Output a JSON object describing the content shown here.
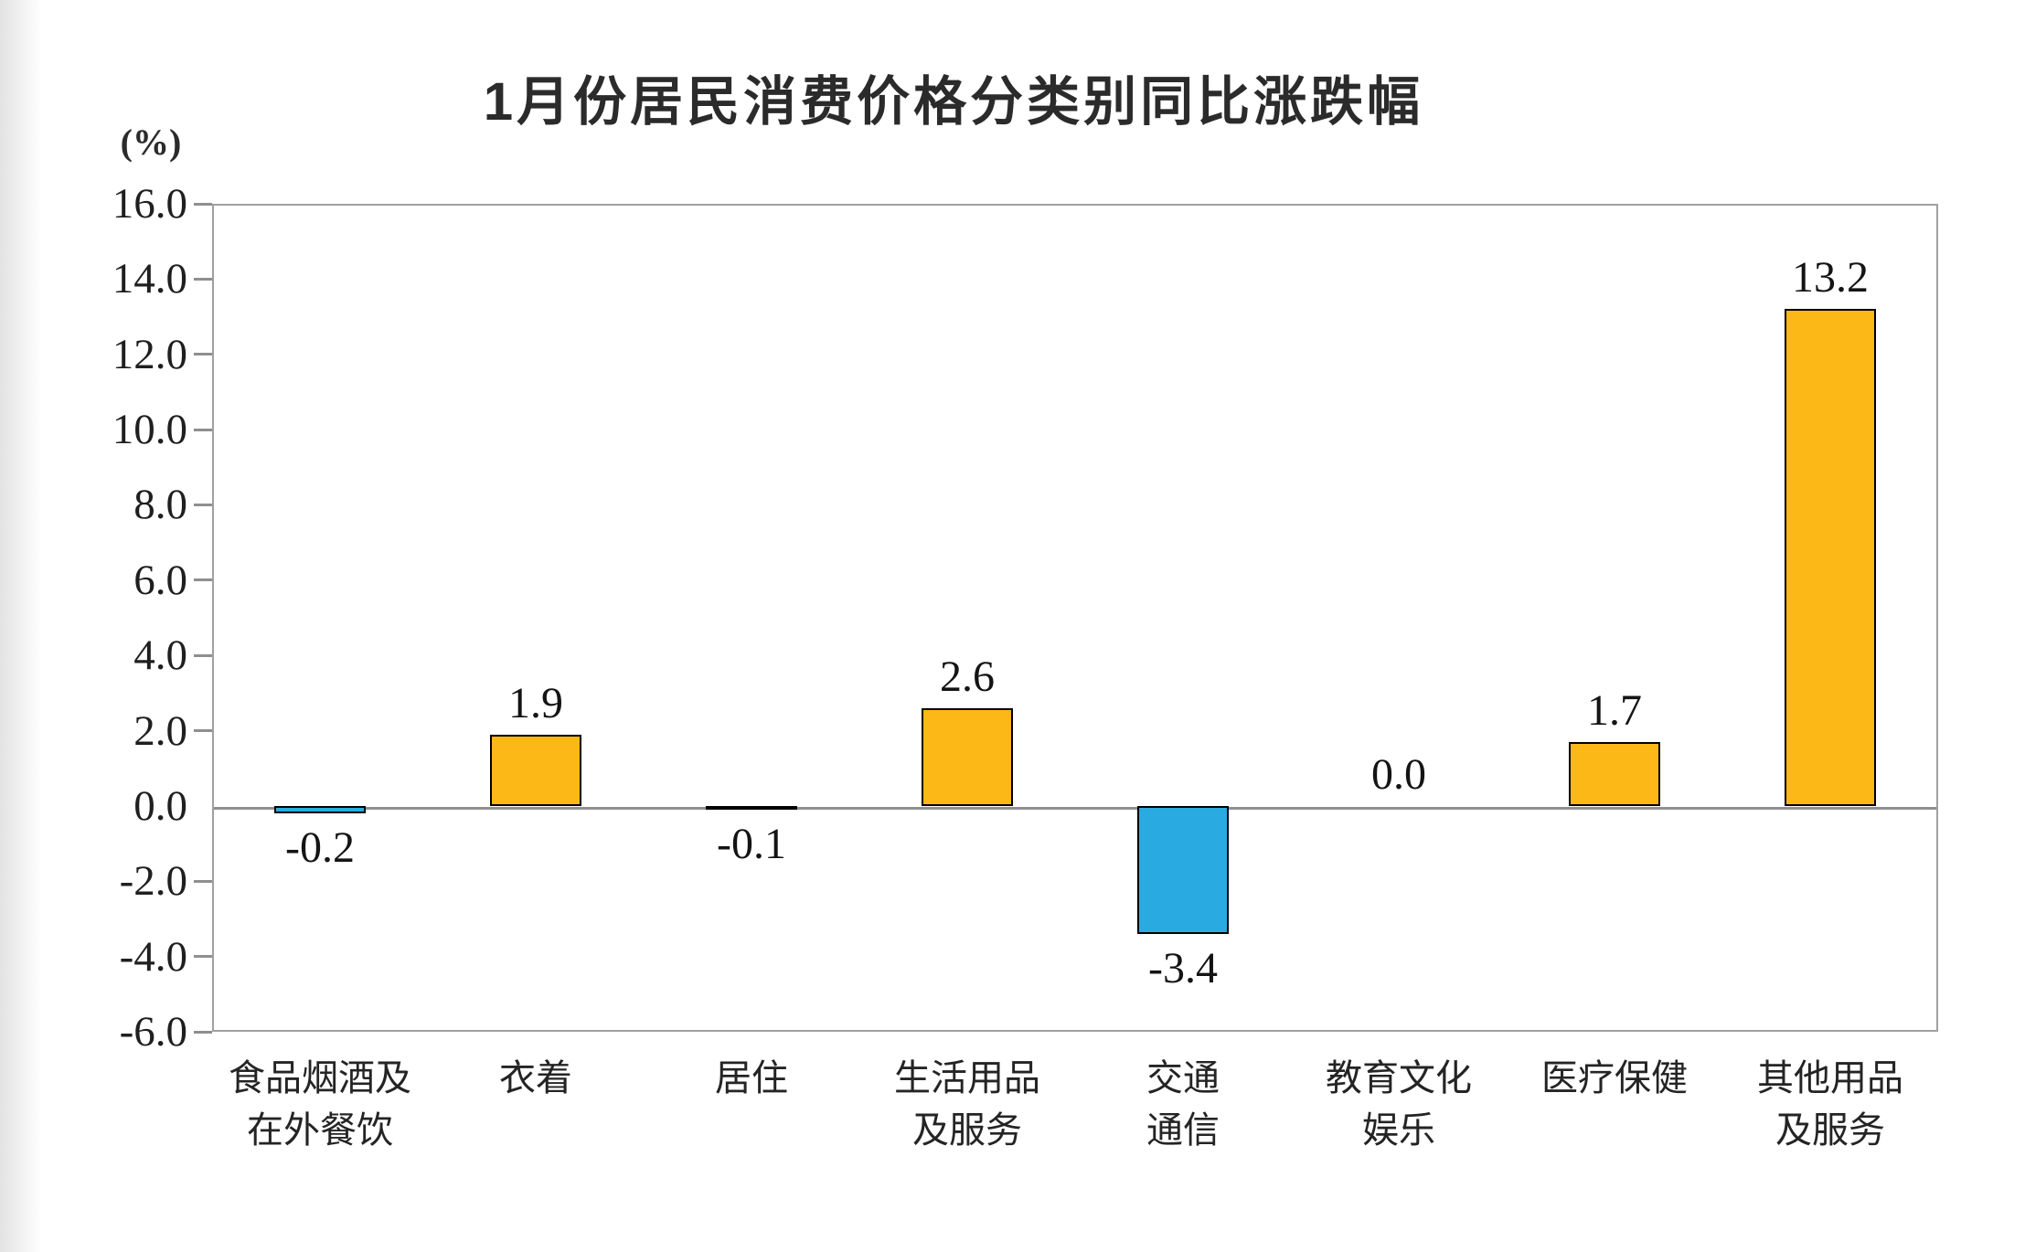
{
  "title": "1月份居民消费价格分类别同比涨跌幅",
  "y_axis_unit": "(%)",
  "chart_data": {
    "type": "bar",
    "title": "1月份居民消费价格分类别同比涨跌幅",
    "xlabel": "",
    "ylabel": "(%)",
    "ylim": [
      -6.0,
      16.0
    ],
    "y_tick_step": 2.0,
    "y_ticks": [
      "16.0",
      "14.0",
      "12.0",
      "10.0",
      "8.0",
      "6.0",
      "4.0",
      "2.0",
      "0.0",
      "-2.0",
      "-4.0",
      "-6.0"
    ],
    "grid": false,
    "legend": "none",
    "categories": [
      "食品烟酒及\n在外餐饮",
      "衣着",
      "居住",
      "生活用品\n及服务",
      "交通\n通信",
      "教育文化\n娱乐",
      "医疗保健",
      "其他用品\n及服务"
    ],
    "values": [
      -0.2,
      1.9,
      -0.1,
      2.6,
      -3.4,
      0.0,
      1.7,
      13.2
    ],
    "value_labels": [
      "-0.2",
      "1.9",
      "-0.1",
      "2.6",
      "-3.4",
      "0.0",
      "1.7",
      "13.2"
    ],
    "colors": {
      "positive_bar": "#FBB817",
      "negative_bar": "#29ABE2",
      "bar_border": "#000000",
      "plot_border": "#a0a0a0",
      "zero_line": "#8f8f8f",
      "tick_mark": "#8f8f8f",
      "text": "#1f1f1f"
    }
  }
}
